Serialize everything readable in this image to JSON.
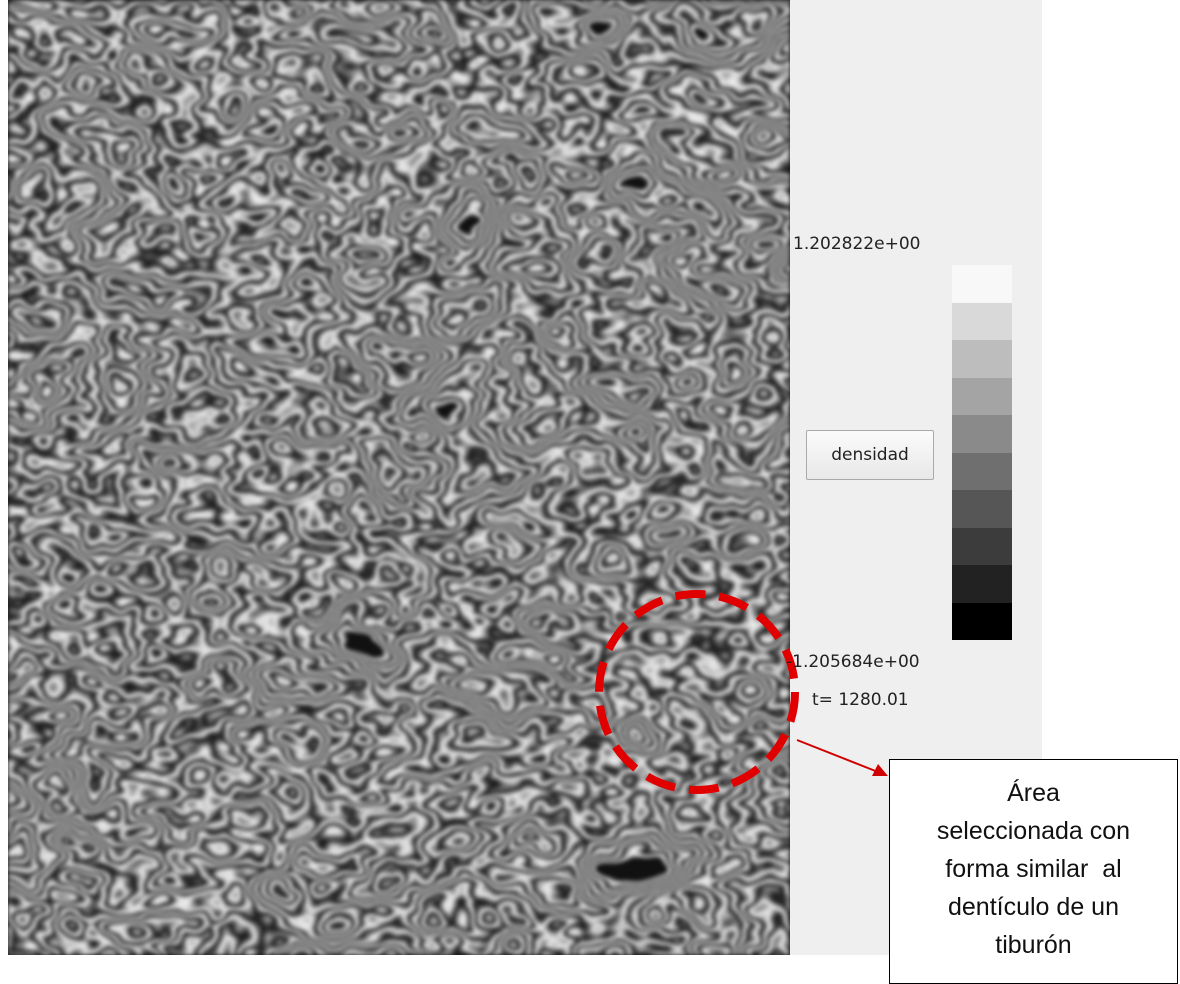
{
  "colorbar": {
    "max_label": "1.202822e+00",
    "min_label": "-1.205684e+00"
  },
  "button": {
    "label": "densidad"
  },
  "time_label": "t= 1280.01",
  "annotation": {
    "lines": [
      "Área",
      "seleccionada con",
      "forma similar  al",
      "dentículo de un",
      "tiburón"
    ]
  }
}
